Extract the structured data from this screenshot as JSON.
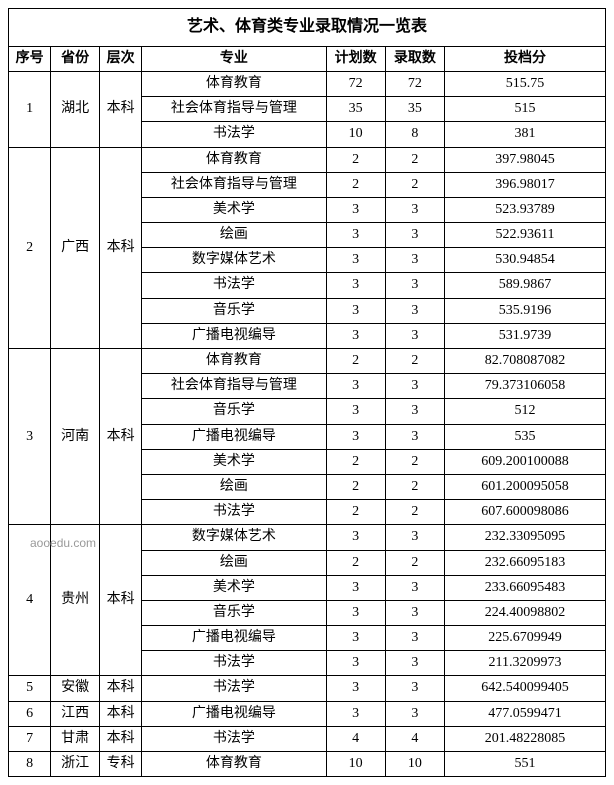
{
  "title": "艺术、体育类专业录取情况一览表",
  "watermark": "aooedu.com",
  "headers": {
    "seq": "序号",
    "province": "省份",
    "level": "层次",
    "major": "专业",
    "plan": "计划数",
    "admit": "录取数",
    "score": "投档分"
  },
  "groups": [
    {
      "seq": "1",
      "province": "湖北",
      "level": "本科",
      "rows": [
        {
          "major": "体育教育",
          "plan": "72",
          "admit": "72",
          "score": "515.75"
        },
        {
          "major": "社会体育指导与管理",
          "plan": "35",
          "admit": "35",
          "score": "515"
        },
        {
          "major": "书法学",
          "plan": "10",
          "admit": "8",
          "score": "381"
        }
      ]
    },
    {
      "seq": "2",
      "province": "广西",
      "level": "本科",
      "rows": [
        {
          "major": "体育教育",
          "plan": "2",
          "admit": "2",
          "score": "397.98045"
        },
        {
          "major": "社会体育指导与管理",
          "plan": "2",
          "admit": "2",
          "score": "396.98017"
        },
        {
          "major": "美术学",
          "plan": "3",
          "admit": "3",
          "score": "523.93789"
        },
        {
          "major": "绘画",
          "plan": "3",
          "admit": "3",
          "score": "522.93611"
        },
        {
          "major": "数字媒体艺术",
          "plan": "3",
          "admit": "3",
          "score": "530.94854"
        },
        {
          "major": "书法学",
          "plan": "3",
          "admit": "3",
          "score": "589.9867"
        },
        {
          "major": "音乐学",
          "plan": "3",
          "admit": "3",
          "score": "535.9196"
        },
        {
          "major": "广播电视编导",
          "plan": "3",
          "admit": "3",
          "score": "531.9739"
        }
      ]
    },
    {
      "seq": "3",
      "province": "河南",
      "level": "本科",
      "rows": [
        {
          "major": "体育教育",
          "plan": "2",
          "admit": "2",
          "score": "82.708087082"
        },
        {
          "major": "社会体育指导与管理",
          "plan": "3",
          "admit": "3",
          "score": "79.373106058"
        },
        {
          "major": "音乐学",
          "plan": "3",
          "admit": "3",
          "score": "512"
        },
        {
          "major": "广播电视编导",
          "plan": "3",
          "admit": "3",
          "score": "535"
        },
        {
          "major": "美术学",
          "plan": "2",
          "admit": "2",
          "score": "609.200100088"
        },
        {
          "major": "绘画",
          "plan": "2",
          "admit": "2",
          "score": "601.200095058"
        },
        {
          "major": "书法学",
          "plan": "2",
          "admit": "2",
          "score": "607.600098086"
        }
      ]
    },
    {
      "seq": "4",
      "province": "贵州",
      "level": "本科",
      "rows": [
        {
          "major": "数字媒体艺术",
          "plan": "3",
          "admit": "3",
          "score": "232.33095095"
        },
        {
          "major": "绘画",
          "plan": "2",
          "admit": "2",
          "score": "232.66095183"
        },
        {
          "major": "美术学",
          "plan": "3",
          "admit": "3",
          "score": "233.66095483"
        },
        {
          "major": "音乐学",
          "plan": "3",
          "admit": "3",
          "score": "224.40098802"
        },
        {
          "major": "广播电视编导",
          "plan": "3",
          "admit": "3",
          "score": "225.6709949"
        },
        {
          "major": "书法学",
          "plan": "3",
          "admit": "3",
          "score": "211.3209973"
        }
      ]
    },
    {
      "seq": "5",
      "province": "安徽",
      "level": "本科",
      "rows": [
        {
          "major": "书法学",
          "plan": "3",
          "admit": "3",
          "score": "642.540099405"
        }
      ]
    },
    {
      "seq": "6",
      "province": "江西",
      "level": "本科",
      "rows": [
        {
          "major": "广播电视编导",
          "plan": "3",
          "admit": "3",
          "score": "477.0599471"
        }
      ]
    },
    {
      "seq": "7",
      "province": "甘肃",
      "level": "本科",
      "rows": [
        {
          "major": "书法学",
          "plan": "4",
          "admit": "4",
          "score": "201.48228085"
        }
      ]
    },
    {
      "seq": "8",
      "province": "浙江",
      "level": "专科",
      "rows": [
        {
          "major": "体育教育",
          "plan": "10",
          "admit": "10",
          "score": "551"
        }
      ]
    }
  ],
  "styling": {
    "border_color": "#000000",
    "background_color": "#ffffff",
    "font_family": "SimSun",
    "title_fontsize": 16,
    "header_fontsize": 14,
    "cell_fontsize": 14,
    "column_widths": {
      "seq": 40,
      "province": 46,
      "level": 40,
      "major": 174,
      "plan": 56,
      "admit": 56,
      "score": 152
    }
  }
}
